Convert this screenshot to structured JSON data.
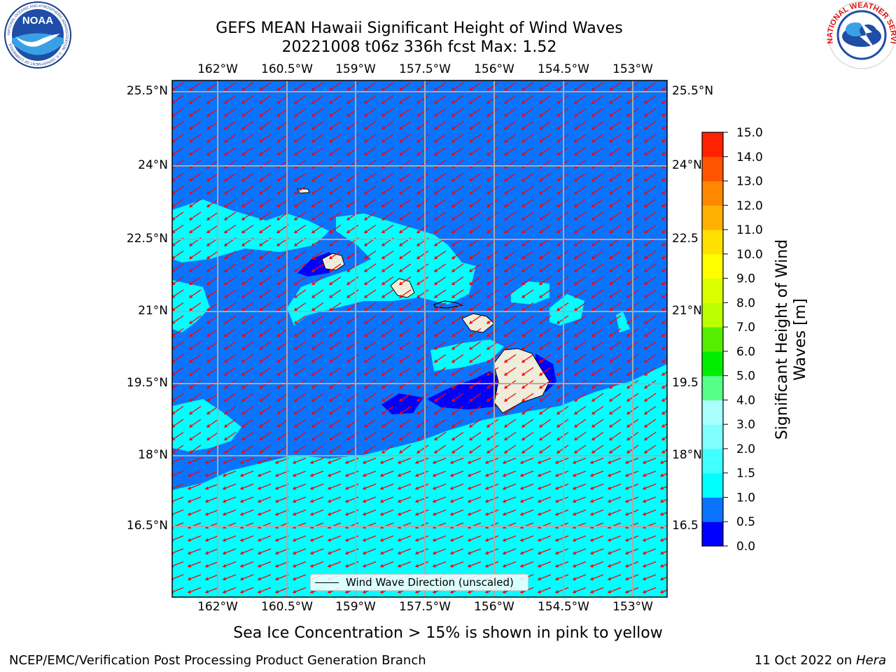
{
  "title": {
    "line1": "GEFS MEAN Hawaii Significant Height of Wind Waves",
    "line2": "20221008 t06z 336h fcst   Max: 1.52"
  },
  "axes": {
    "lon_ticks": [
      "162°W",
      "160.5°W",
      "159°W",
      "157.5°W",
      "156°W",
      "154.5°W",
      "153°W"
    ],
    "lat_ticks": [
      "25.5°N",
      "24°N",
      "22.5°N",
      "21°N",
      "19.5°N",
      "18°N",
      "16.5°N"
    ],
    "lat_ticks_right": [
      "25.5°N",
      "24°N",
      "22.5",
      "21°N",
      "19.5",
      "18°N",
      "16.5"
    ]
  },
  "legend": {
    "label": "Wind Wave Direction (unscaled)"
  },
  "colorbar": {
    "label": "Significant Height of Wind Waves [m]",
    "label_line1": "Significant Height of Wind",
    "label_line2": "Waves [m]",
    "ticks": [
      "0.0",
      "0.5",
      "1.0",
      "1.5",
      "2.0",
      "3.0",
      "4.0",
      "5.0",
      "6.0",
      "7.0",
      "8.0",
      "9.0",
      "10.0",
      "11.0",
      "12.0",
      "13.0",
      "14.0",
      "15.0"
    ],
    "colors": [
      "#0000ff",
      "#0a74ff",
      "#00ffff",
      "#3fffff",
      "#80ffff",
      "#aaffff",
      "#55ff88",
      "#00ee00",
      "#55ee00",
      "#bbff00",
      "#dcff00",
      "#ffff00",
      "#ffe000",
      "#ffb000",
      "#ff8800",
      "#ff5500",
      "#ff2200"
    ]
  },
  "colors": {
    "ocean_low": "#0a74ff",
    "ocean_mid": "#00ffff",
    "ocean_min": "#0000ff",
    "land": "#efecd9",
    "arrows": "#ff0000",
    "grid": "#aaaaaa"
  },
  "footnote": "Sea Ice Concentration > 15% is shown in pink to yellow",
  "credits": {
    "left": "NCEP/EMC/Verification Post Processing Product Generation Branch",
    "right_date": "11 Oct 2022 on ",
    "right_machine": "Hera"
  },
  "logos": {
    "noaa": {
      "text": "NOAA",
      "ring_text": "NATIONAL OCEANIC AND ATMOSPHERIC ADMINISTRATION · U.S. DEPARTMENT OF COMMERCE"
    },
    "nws": {
      "ring_text": "NATIONAL WEATHER SERVICE"
    }
  }
}
